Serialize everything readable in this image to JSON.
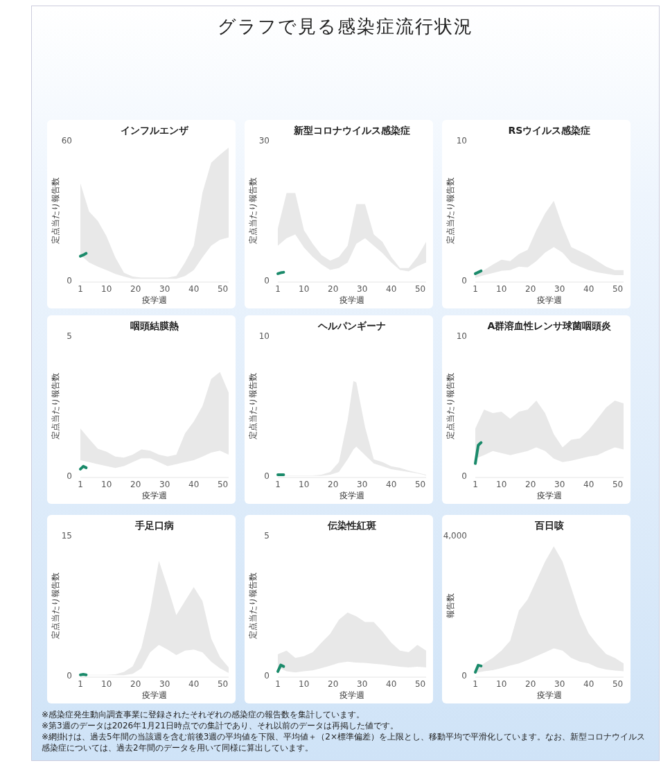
{
  "chart_data": [
    {
      "type": "other",
      "title": "グラフで見る感染症流行状況"
    },
    {
      "type": "line",
      "title": "インフルエンザ",
      "xlim": [
        1,
        52
      ],
      "xlabel": "疫学週",
      "ylabel": "定点当たり報告数",
      "xticks": [
        1,
        10,
        20,
        30,
        40,
        50
      ],
      "ylim": [
        0,
        60
      ],
      "yticks": [
        0,
        60
      ],
      "grid": false,
      "series": [
        {
          "type": "area",
          "color": "#e8e8e8",
          "x": [
            1,
            4,
            7,
            10,
            13,
            16,
            19,
            22,
            25,
            28,
            31,
            34,
            37,
            40,
            43,
            46,
            49,
            52
          ],
          "values": [
            null,
            null,
            null,
            null,
            null,
            null,
            null,
            null,
            null,
            null,
            null,
            null,
            null,
            null,
            null,
            null,
            null,
            null
          ],
          "lower": [
            11,
            7.8,
            6,
            4.5,
            2.9,
            1.8,
            0.8,
            0.8,
            0.8,
            0.8,
            0.8,
            0.8,
            2,
            4.5,
            10,
            15,
            17.5,
            18.6
          ],
          "upper": [
            41.7,
            29.6,
            25.6,
            19,
            10,
            3.4,
            1.8,
            1.3,
            1.3,
            1.3,
            1.3,
            2,
            7.8,
            15,
            37.7,
            50.6,
            54,
            57
          ]
        },
        {
          "type": "line",
          "color": "#1a8a6a",
          "x": [
            1,
            2,
            3
          ],
          "values": [
            10.5,
            11,
            11.7
          ]
        }
      ]
    },
    {
      "type": "line",
      "title": "新型コロナウイルス感染症",
      "xlim": [
        1,
        52
      ],
      "xlabel": "疫学週",
      "ylabel": "定点当たり報告数",
      "xticks": [
        1,
        10,
        20,
        30,
        40,
        50
      ],
      "ylim": [
        0,
        30
      ],
      "yticks": [
        0,
        30
      ],
      "grid": false,
      "series": [
        {
          "type": "area",
          "color": "#e8e8e8",
          "x": [
            1,
            4,
            7,
            10,
            13,
            16,
            19,
            22,
            25,
            28,
            31,
            34,
            37,
            40,
            43,
            46,
            49,
            52
          ],
          "values": [
            null,
            null,
            null,
            null,
            null,
            null,
            null,
            null,
            null,
            null,
            null,
            null,
            null,
            null,
            null,
            null,
            null,
            null
          ],
          "lower": [
            7.5,
            9.1,
            9.9,
            7.1,
            5.1,
            3.5,
            2.3,
            2.7,
            3.9,
            7.9,
            9.1,
            7.5,
            5.9,
            3.9,
            2.3,
            2,
            3.1,
            3.9
          ],
          "upper": [
            11.2,
            18.8,
            18.8,
            10.8,
            7.9,
            5.5,
            4.3,
            5.1,
            7.5,
            16.4,
            16.4,
            9.9,
            8.3,
            5.1,
            2.7,
            2.7,
            5.1,
            8.3
          ]
        },
        {
          "type": "line",
          "color": "#1a8a6a",
          "x": [
            1,
            2,
            3
          ],
          "values": [
            1.5,
            1.7,
            1.8
          ]
        }
      ]
    },
    {
      "type": "line",
      "title": "RSウイルス感染症",
      "xlim": [
        1,
        52
      ],
      "xlabel": "疫学週",
      "ylabel": "定点当たり報告数",
      "xticks": [
        1,
        10,
        20,
        30,
        40,
        50
      ],
      "ylim": [
        0,
        10
      ],
      "yticks": [
        0,
        10
      ],
      "grid": false,
      "series": [
        {
          "type": "area",
          "color": "#e8e8e8",
          "x": [
            1,
            4,
            7,
            10,
            13,
            16,
            19,
            22,
            25,
            28,
            31,
            34,
            37,
            40,
            43,
            46,
            49,
            52
          ],
          "values": [
            null,
            null,
            null,
            null,
            null,
            null,
            null,
            null,
            null,
            null,
            null,
            null,
            null,
            null,
            null,
            null,
            null,
            null
          ],
          "lower": [
            0.2,
            0.4,
            0.55,
            0.7,
            0.75,
            1,
            0.95,
            1.4,
            2,
            2.4,
            2,
            1.3,
            1,
            0.75,
            0.6,
            0.5,
            0.4,
            0.4
          ],
          "upper": [
            0.35,
            0.75,
            1.15,
            1.5,
            1.4,
            1.9,
            2.2,
            3.6,
            4.8,
            5.7,
            3.9,
            2.4,
            2.1,
            1.8,
            1.4,
            1,
            0.75,
            0.75
          ]
        },
        {
          "type": "line",
          "color": "#1a8a6a",
          "x": [
            1,
            2,
            3
          ],
          "values": [
            0.5,
            0.6,
            0.7
          ]
        }
      ]
    },
    {
      "type": "line",
      "title": "咽頭結膜熱",
      "xlim": [
        1,
        52
      ],
      "xlabel": "疫学週",
      "ylabel": "定点当たり報告数",
      "xticks": [
        1,
        10,
        20,
        30,
        40,
        50
      ],
      "ylim": [
        0,
        5
      ],
      "yticks": [
        0,
        5
      ],
      "grid": false,
      "series": [
        {
          "type": "area",
          "color": "#e8e8e8",
          "x": [
            1,
            4,
            7,
            10,
            13,
            16,
            19,
            22,
            25,
            28,
            31,
            34,
            37,
            40,
            43,
            46,
            49,
            52
          ],
          "values": [
            null,
            null,
            null,
            null,
            null,
            null,
            null,
            null,
            null,
            null,
            null,
            null,
            null,
            null,
            null,
            null,
            null,
            null
          ],
          "lower": [
            0.57,
            0.5,
            0.43,
            0.36,
            0.29,
            0.36,
            0.5,
            0.64,
            0.64,
            0.5,
            0.36,
            0.43,
            0.5,
            0.57,
            0.7,
            0.84,
            0.91,
            0.77
          ],
          "upper": [
            1.7,
            1.33,
            0.98,
            0.87,
            0.7,
            0.66,
            0.77,
            0.95,
            0.91,
            0.77,
            0.7,
            0.77,
            1.53,
            1.95,
            2.5,
            3.47,
            3.72,
            2.98
          ]
        },
        {
          "type": "line",
          "color": "#1a8a6a",
          "x": [
            1,
            2,
            3
          ],
          "values": [
            0.25,
            0.35,
            0.3
          ]
        }
      ]
    },
    {
      "type": "line",
      "title": "ヘルパンギーナ",
      "xlim": [
        1,
        52
      ],
      "xlabel": "疫学週",
      "ylabel": "定点当たり報告数",
      "xticks": [
        1,
        10,
        20,
        30,
        40,
        50
      ],
      "ylim": [
        0,
        10
      ],
      "yticks": [
        0,
        10
      ],
      "grid": false,
      "series": [
        {
          "type": "area",
          "color": "#e8e8e8",
          "x": [
            1,
            4,
            7,
            10,
            13,
            16,
            19,
            22,
            25,
            27,
            28,
            31,
            34,
            37,
            40,
            43,
            46,
            49,
            52
          ],
          "values": [
            null,
            null,
            null,
            null,
            null,
            null,
            null,
            null,
            null,
            null,
            null,
            null,
            null,
            null,
            null,
            null,
            null,
            null,
            null
          ],
          "lower": [
            0.02,
            0.02,
            0.02,
            0.02,
            0.02,
            0.02,
            0.1,
            0.3,
            1.2,
            1.9,
            2.1,
            1.5,
            0.9,
            0.7,
            0.5,
            0.4,
            0.3,
            0.2,
            0.05
          ],
          "upper": [
            0.05,
            0.05,
            0.05,
            0.05,
            0.05,
            0.1,
            0.3,
            1,
            4,
            6.8,
            6.7,
            3.5,
            1.2,
            1,
            0.7,
            0.6,
            0.4,
            0.25,
            0.1
          ]
        },
        {
          "type": "line",
          "color": "#1a8a6a",
          "x": [
            1,
            2,
            3
          ],
          "values": [
            0.1,
            0.1,
            0.1
          ]
        }
      ]
    },
    {
      "type": "line",
      "title": "A群溶血性レンサ球菌咽頭炎",
      "xlim": [
        1,
        52
      ],
      "xlabel": "疫学週",
      "ylabel": "定点当たり報告数",
      "xticks": [
        1,
        10,
        20,
        30,
        40,
        50
      ],
      "ylim": [
        0,
        10
      ],
      "yticks": [
        0,
        10
      ],
      "grid": false,
      "series": [
        {
          "type": "area",
          "color": "#e8e8e8",
          "x": [
            1,
            4,
            7,
            10,
            13,
            16,
            19,
            22,
            25,
            28,
            31,
            34,
            37,
            40,
            43,
            46,
            49,
            52
          ],
          "values": [
            null,
            null,
            null,
            null,
            null,
            null,
            null,
            null,
            null,
            null,
            null,
            null,
            null,
            null,
            null,
            null,
            null,
            null
          ],
          "lower": [
            1.25,
            1.5,
            1.8,
            1.65,
            1.5,
            1.65,
            1.8,
            2.05,
            1.8,
            1.25,
            1,
            1.1,
            1.25,
            1.4,
            1.5,
            1.8,
            2.05,
            1.9
          ],
          "upper": [
            3.4,
            4.75,
            4.5,
            4.6,
            4.1,
            4.6,
            4.75,
            5.4,
            4.5,
            3,
            2.05,
            2.6,
            2.7,
            3.3,
            4.1,
            4.9,
            5.4,
            5.2
          ]
        },
        {
          "type": "line",
          "color": "#1a8a6a",
          "x": [
            1,
            2,
            3
          ],
          "values": [
            0.9,
            2.2,
            2.4
          ]
        }
      ]
    },
    {
      "type": "line",
      "title": "手足口病",
      "xlim": [
        1,
        52
      ],
      "xlabel": "疫学週",
      "ylabel": "定点当たり報告数",
      "xticks": [
        1,
        10,
        20,
        30,
        40,
        50
      ],
      "ylim": [
        0,
        15
      ],
      "yticks": [
        0,
        15
      ],
      "grid": false,
      "series": [
        {
          "type": "area",
          "color": "#e8e8e8",
          "x": [
            1,
            4,
            7,
            10,
            13,
            16,
            19,
            22,
            25,
            28,
            31,
            34,
            37,
            40,
            43,
            46,
            49,
            52
          ],
          "values": [
            null,
            null,
            null,
            null,
            null,
            null,
            null,
            null,
            null,
            null,
            null,
            null,
            null,
            null,
            null,
            null,
            null,
            null
          ],
          "lower": [
            0.05,
            0.05,
            0.05,
            0.05,
            0.05,
            0.05,
            0.2,
            0.8,
            2.5,
            3.3,
            2.8,
            2.2,
            2.7,
            2.8,
            2.5,
            1.5,
            0.8,
            0.3
          ],
          "upper": [
            0.1,
            0.1,
            0.1,
            0.1,
            0.15,
            0.4,
            1,
            3,
            7,
            12.3,
            9.5,
            6.5,
            8,
            9.5,
            8,
            4,
            2,
            0.9
          ]
        },
        {
          "type": "line",
          "color": "#1a8a6a",
          "x": [
            1,
            2,
            3
          ],
          "values": [
            0.1,
            0.15,
            0.1
          ]
        }
      ]
    },
    {
      "type": "line",
      "title": "伝染性紅斑",
      "xlim": [
        1,
        52
      ],
      "xlabel": "疫学週",
      "ylabel": "定点当たり報告数",
      "xticks": [
        1,
        10,
        20,
        30,
        40,
        50
      ],
      "ylim": [
        0,
        5
      ],
      "yticks": [
        0,
        5
      ],
      "grid": false,
      "series": [
        {
          "type": "area",
          "color": "#e8e8e8",
          "x": [
            1,
            4,
            7,
            10,
            13,
            16,
            19,
            22,
            25,
            28,
            31,
            34,
            37,
            40,
            43,
            46,
            49,
            52
          ],
          "values": [
            null,
            null,
            null,
            null,
            null,
            null,
            null,
            null,
            null,
            null,
            null,
            null,
            null,
            null,
            null,
            null,
            null,
            null
          ],
          "lower": [
            0.3,
            0.16,
            0.12,
            0.16,
            0.19,
            0.27,
            0.36,
            0.46,
            0.5,
            0.47,
            0.46,
            0.43,
            0.4,
            0.36,
            0.32,
            0.3,
            0.32,
            0.3
          ],
          "upper": [
            0.77,
            0.9,
            0.64,
            0.7,
            0.84,
            1.18,
            1.5,
            2,
            2.26,
            2.12,
            1.92,
            1.92,
            1.58,
            1.18,
            0.9,
            0.84,
            1.1,
            0.9
          ]
        },
        {
          "type": "line",
          "color": "#1a8a6a",
          "x": [
            1,
            2,
            3
          ],
          "values": [
            0.15,
            0.38,
            0.33
          ]
        }
      ]
    },
    {
      "type": "line",
      "title": "百日咳",
      "xlim": [
        1,
        52
      ],
      "xlabel": "疫学週",
      "ylabel": "報告数",
      "xticks": [
        1,
        10,
        20,
        30,
        40,
        50
      ],
      "ylim": [
        0,
        4000
      ],
      "yticks": [
        0,
        {
          "value": 4000,
          "label": "4,000"
        }
      ],
      "grid": false,
      "series": [
        {
          "type": "area",
          "color": "#e8e8e8",
          "x": [
            1,
            4,
            7,
            10,
            13,
            16,
            19,
            22,
            25,
            28,
            31,
            34,
            37,
            40,
            43,
            46,
            49,
            52
          ],
          "values": [
            null,
            null,
            null,
            null,
            null,
            null,
            null,
            null,
            null,
            null,
            null,
            null,
            null,
            null,
            null,
            null,
            null,
            null
          ],
          "lower": [
            80,
            130,
            160,
            220,
            290,
            350,
            450,
            560,
            670,
            780,
            720,
            510,
            400,
            350,
            240,
            180,
            150,
            130
          ],
          "upper": [
            180,
            350,
            510,
            720,
            1000,
            1860,
            2180,
            2720,
            3260,
            3700,
            3260,
            2510,
            1750,
            1210,
            890,
            620,
            510,
            350
          ]
        },
        {
          "type": "line",
          "color": "#1a8a6a",
          "x": [
            1,
            2,
            3
          ],
          "values": [
            100,
            300,
            280
          ]
        }
      ]
    },
    {
      "type": "other",
      "annotations": [
        "※感染症発生動向調査事業に登録されたそれぞれの感染症の報告数を集計しています。",
        "※第3週のデータは2026年1月21日時点での集計であり、それ以前のデータは再掲した値です。",
        "※網掛けは、過去5年間の当該週を含む前後3週の平均値を下限、平均値＋（2×標準偏差）を上限とし、移動平均で平滑化しています。なお、新型コロナウイルス感染症については、過去2年間のデータを用いて同様に算出しています。"
      ]
    }
  ]
}
